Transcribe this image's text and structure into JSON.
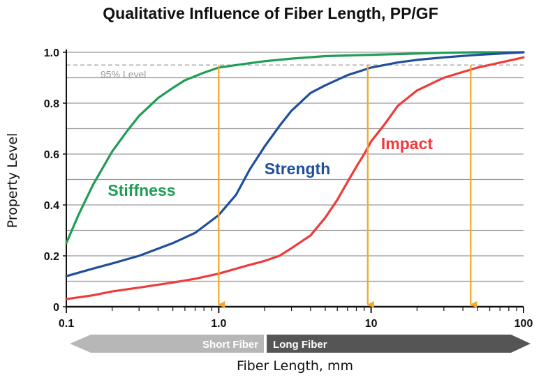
{
  "chart_data": {
    "type": "line",
    "title": "Qualitative Influence of Fiber Length, PP/GF",
    "xlabel": "Fiber Length, mm",
    "ylabel": "Property Level",
    "xscale": "log",
    "xlim": [
      0.1,
      100
    ],
    "ylim": [
      0,
      1.0
    ],
    "grid": true,
    "x_ticks": [
      "0.1",
      "1.0",
      "10",
      "100"
    ],
    "y_ticks": [
      "0",
      "0.2",
      "0.4",
      "0.6",
      "0.8",
      "1.0"
    ],
    "reference_line": {
      "label": "95% Level",
      "y": 0.95
    },
    "series": [
      {
        "name": "Stiffness",
        "color": "#1f9d55",
        "x": [
          0.1,
          0.12,
          0.15,
          0.2,
          0.25,
          0.3,
          0.4,
          0.5,
          0.6,
          0.8,
          1.0,
          1.5,
          2,
          3,
          5,
          10,
          20,
          30,
          50,
          100
        ],
        "y": [
          0.25,
          0.36,
          0.48,
          0.61,
          0.69,
          0.75,
          0.82,
          0.86,
          0.89,
          0.92,
          0.94,
          0.955,
          0.965,
          0.975,
          0.985,
          0.99,
          0.995,
          0.998,
          1.0,
          1.0
        ]
      },
      {
        "name": "Strength",
        "color": "#1f4e9c",
        "x": [
          0.1,
          0.15,
          0.2,
          0.3,
          0.5,
          0.7,
          1.0,
          1.3,
          1.6,
          2,
          2.5,
          3,
          4,
          5,
          7,
          10,
          15,
          20,
          30,
          50,
          100
        ],
        "y": [
          0.12,
          0.15,
          0.17,
          0.2,
          0.25,
          0.29,
          0.36,
          0.44,
          0.54,
          0.63,
          0.71,
          0.77,
          0.84,
          0.87,
          0.91,
          0.94,
          0.96,
          0.97,
          0.98,
          0.99,
          1.0
        ]
      },
      {
        "name": "Impact",
        "color": "#ee3b3b",
        "x": [
          0.1,
          0.15,
          0.2,
          0.3,
          0.5,
          0.7,
          1.0,
          1.5,
          2,
          2.5,
          3,
          4,
          5,
          6,
          7,
          8,
          9,
          10,
          12,
          15,
          20,
          30,
          50,
          100
        ],
        "y": [
          0.03,
          0.045,
          0.06,
          0.075,
          0.095,
          0.11,
          0.13,
          0.16,
          0.18,
          0.2,
          0.23,
          0.28,
          0.35,
          0.42,
          0.49,
          0.55,
          0.6,
          0.65,
          0.71,
          0.79,
          0.85,
          0.9,
          0.94,
          0.98
        ]
      }
    ],
    "markers": [
      {
        "x": 1.0
      },
      {
        "x": 9.5
      },
      {
        "x": 45
      }
    ],
    "fiber_bar": {
      "short_label": "Short Fiber",
      "long_label": "Long Fiber",
      "split_x": 2
    }
  }
}
